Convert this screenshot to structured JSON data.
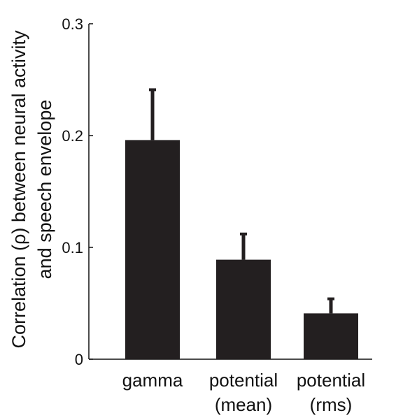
{
  "chart_data": {
    "type": "bar",
    "categories": [
      [
        "gamma"
      ],
      [
        "potential",
        "(mean)"
      ],
      [
        "potential",
        "(rms)"
      ]
    ],
    "values": [
      0.196,
      0.089,
      0.041
    ],
    "error_upper": [
      0.241,
      0.112,
      0.054
    ],
    "ylabel_lines": [
      "Correlation (ρ) between neural activity",
      "and speech envelope"
    ],
    "ylim": [
      0,
      0.3
    ],
    "yticks": [
      0,
      0.1,
      0.2,
      0.3
    ],
    "ytick_labels": [
      "0",
      "0.1",
      "0.2",
      "0.3"
    ],
    "xlabel": "",
    "title": "",
    "grid": false,
    "legend": "none",
    "bar_color": "#231f20"
  }
}
